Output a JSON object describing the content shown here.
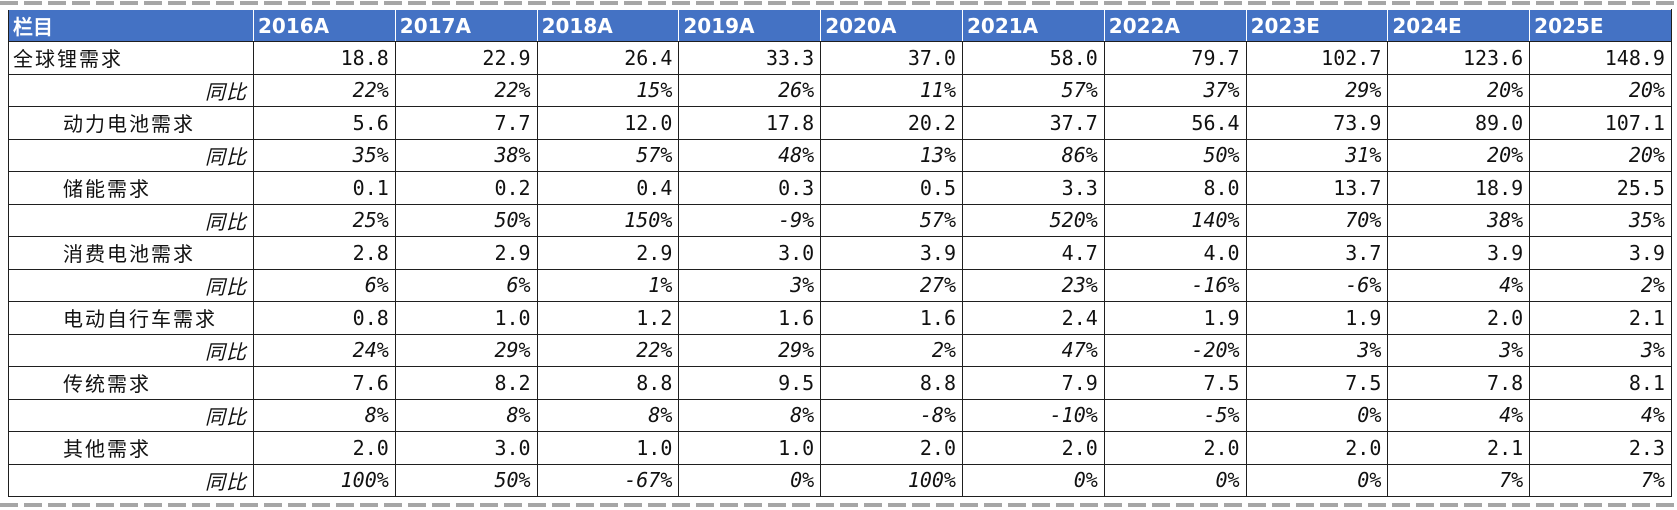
{
  "header": {
    "label": "栏目",
    "years": [
      "2016A",
      "2017A",
      "2018A",
      "2019A",
      "2020A",
      "2021A",
      "2022A",
      "2023E",
      "2024E",
      "2025E"
    ]
  },
  "rows": [
    {
      "label": "全球锂需求",
      "level": 1,
      "type": "value",
      "values": [
        "18.8",
        "22.9",
        "26.4",
        "33.3",
        "37.0",
        "58.0",
        "79.7",
        "102.7",
        "123.6",
        "148.9"
      ]
    },
    {
      "label": "同比",
      "level": 1,
      "type": "yoy",
      "values": [
        "22%",
        "22%",
        "15%",
        "26%",
        "11%",
        "57%",
        "37%",
        "29%",
        "20%",
        "20%"
      ]
    },
    {
      "label": "动力电池需求",
      "level": 2,
      "type": "value",
      "values": [
        "5.6",
        "7.7",
        "12.0",
        "17.8",
        "20.2",
        "37.7",
        "56.4",
        "73.9",
        "89.0",
        "107.1"
      ]
    },
    {
      "label": "同比",
      "level": 2,
      "type": "yoy",
      "values": [
        "35%",
        "38%",
        "57%",
        "48%",
        "13%",
        "86%",
        "50%",
        "31%",
        "20%",
        "20%"
      ]
    },
    {
      "label": "储能需求",
      "level": 2,
      "type": "value",
      "values": [
        "0.1",
        "0.2",
        "0.4",
        "0.3",
        "0.5",
        "3.3",
        "8.0",
        "13.7",
        "18.9",
        "25.5"
      ]
    },
    {
      "label": "同比",
      "level": 2,
      "type": "yoy",
      "values": [
        "25%",
        "50%",
        "150%",
        "-9%",
        "57%",
        "520%",
        "140%",
        "70%",
        "38%",
        "35%"
      ]
    },
    {
      "label": "消费电池需求",
      "level": 2,
      "type": "value",
      "values": [
        "2.8",
        "2.9",
        "2.9",
        "3.0",
        "3.9",
        "4.7",
        "4.0",
        "3.7",
        "3.9",
        "3.9"
      ]
    },
    {
      "label": "同比",
      "level": 2,
      "type": "yoy",
      "values": [
        "6%",
        "6%",
        "1%",
        "3%",
        "27%",
        "23%",
        "-16%",
        "-6%",
        "4%",
        "2%"
      ]
    },
    {
      "label": "电动自行车需求",
      "level": 2,
      "type": "value",
      "values": [
        "0.8",
        "1.0",
        "1.2",
        "1.6",
        "1.6",
        "2.4",
        "1.9",
        "1.9",
        "2.0",
        "2.1"
      ]
    },
    {
      "label": "同比",
      "level": 2,
      "type": "yoy",
      "values": [
        "24%",
        "29%",
        "22%",
        "29%",
        "2%",
        "47%",
        "-20%",
        "3%",
        "3%",
        "3%"
      ]
    },
    {
      "label": "传统需求",
      "level": 2,
      "type": "value",
      "values": [
        "7.6",
        "8.2",
        "8.8",
        "9.5",
        "8.8",
        "7.9",
        "7.5",
        "7.5",
        "7.8",
        "8.1"
      ]
    },
    {
      "label": "同比",
      "level": 2,
      "type": "yoy",
      "values": [
        "8%",
        "8%",
        "8%",
        "8%",
        "-8%",
        "-10%",
        "-5%",
        "0%",
        "4%",
        "4%"
      ]
    },
    {
      "label": "其他需求",
      "level": 2,
      "type": "value",
      "values": [
        "2.0",
        "3.0",
        "1.0",
        "1.0",
        "2.0",
        "2.0",
        "2.0",
        "2.0",
        "2.1",
        "2.3"
      ]
    },
    {
      "label": "同比",
      "level": 2,
      "type": "yoy",
      "values": [
        "100%",
        "50%",
        "-67%",
        "0%",
        "100%",
        "0%",
        "0%",
        "0%",
        "7%",
        "7%"
      ]
    }
  ]
}
